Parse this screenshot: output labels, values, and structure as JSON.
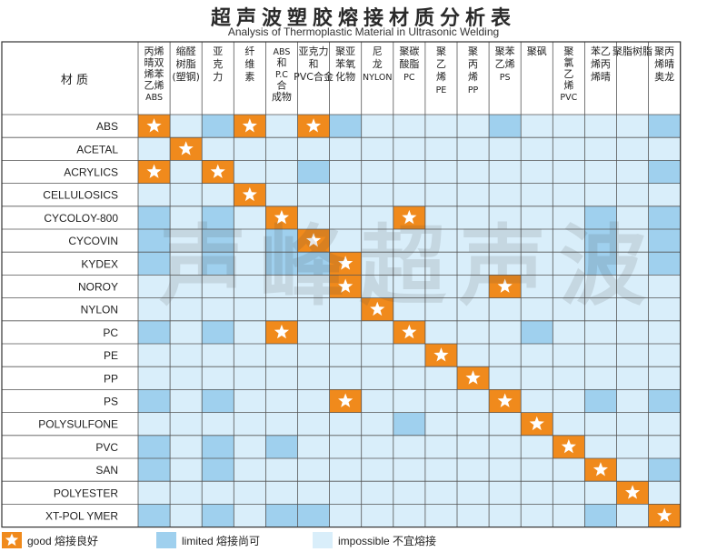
{
  "title": "超声波塑胶熔接材质分析表",
  "subtitle": "Analysis of Thermoplastic Material in Ultrasonic Welding",
  "watermark": "声峰超声波",
  "colors": {
    "good": "#f08a1c",
    "limited": "#9fd0ee",
    "impossible": "#d9eefa",
    "star": "#ffffff",
    "grid": "#555555"
  },
  "legend": {
    "good": "good 熔接良好",
    "limited": "limited 熔接尚可",
    "impossible": "impossible  不宜熔接"
  },
  "chart_data": {
    "type": "table",
    "corner_label": "材 质",
    "columns": [
      [
        "丙烯",
        "晴双",
        "烯苯",
        "乙烯",
        "ABS"
      ],
      [
        "缩醛",
        "树脂",
        "(塑钢)"
      ],
      [
        "亚",
        "克",
        "力"
      ],
      [
        "纤",
        "维",
        "素"
      ],
      [
        "ABS",
        "和",
        "P.C",
        "合",
        "成物"
      ],
      [
        "亚克力",
        "和",
        "PVC合金"
      ],
      [
        "聚亚",
        "苯氧",
        "化物"
      ],
      [
        "尼",
        "龙",
        "NYLON"
      ],
      [
        "聚碳",
        "酸脂",
        "PC"
      ],
      [
        "聚",
        "乙",
        "烯",
        "PE"
      ],
      [
        "聚",
        "丙",
        "烯",
        "PP"
      ],
      [
        "聚苯",
        "乙烯",
        "PS"
      ],
      [
        "聚砜"
      ],
      [
        "聚",
        "氯",
        "乙",
        "烯",
        "PVC"
      ],
      [
        "苯乙",
        "烯丙",
        "烯晴"
      ],
      [
        "聚脂树脂"
      ],
      [
        "聚丙",
        "烯晴",
        "奥龙"
      ]
    ],
    "rows": [
      {
        "label": "ABS",
        "cells": "GILGIGLIIIILIIIIL"
      },
      {
        "label": "ACETAL",
        "cells": "IGIIIIIIIIIIIIIII"
      },
      {
        "label": "ACRYLICS",
        "cells": "GIGIILIIIIIIIIIIL"
      },
      {
        "label": "CELLULOSICS",
        "cells": "IIIGIIIIIIIIIIIII"
      },
      {
        "label": "CYCOLOY-800",
        "cells": "LILIGIIIGIIIIILIL"
      },
      {
        "label": "CYCOVIN",
        "cells": "LILILGIIIIIIIILIL"
      },
      {
        "label": "KYDEX",
        "cells": "LILILLGIIIIIIILIL"
      },
      {
        "label": "NOROY",
        "cells": "IIIIIIGIIIIGIIIII"
      },
      {
        "label": "NYLON",
        "cells": "IIIIIIIGIIIIIIIII"
      },
      {
        "label": "PC",
        "cells": "LILIGIIIGIIILIIII"
      },
      {
        "label": "PE",
        "cells": "IIIIIIIIIGIIIIIII"
      },
      {
        "label": "PP",
        "cells": "IIIIIIIIIIGIIIIII"
      },
      {
        "label": "PS",
        "cells": "LILIIIGIIIIGIILIL"
      },
      {
        "label": "POLYSULFONE",
        "cells": "IIIIIIIILIIIGIIII"
      },
      {
        "label": "PVC",
        "cells": "LILILIIIIIIIIGIII"
      },
      {
        "label": "SAN",
        "cells": "LILIIIIIIIIIIIGIL"
      },
      {
        "label": "POLYESTER",
        "cells": "IIIIIIIIIIIIIIIGI"
      },
      {
        "label": "XT-POL YMER",
        "cells": "LILILLIIIIIIIILIG"
      }
    ],
    "cell_codes": {
      "G": "good",
      "L": "limited",
      "I": "impossible"
    }
  }
}
